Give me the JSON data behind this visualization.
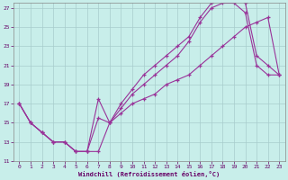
{
  "xlabel": "Windchill (Refroidissement éolien,°C)",
  "bg_color": "#c8eeea",
  "grid_color": "#a8cccc",
  "line_color": "#993399",
  "xlim": [
    -0.5,
    23.5
  ],
  "ylim": [
    11,
    27.5
  ],
  "yticks": [
    11,
    13,
    15,
    17,
    19,
    21,
    23,
    25,
    27
  ],
  "xticks": [
    0,
    1,
    2,
    3,
    4,
    5,
    6,
    7,
    8,
    9,
    10,
    11,
    12,
    13,
    14,
    15,
    16,
    17,
    18,
    19,
    20,
    21,
    22,
    23
  ],
  "line1_x": [
    0,
    1,
    2,
    3,
    4,
    5,
    6,
    7,
    8,
    9,
    10,
    11,
    12,
    13,
    14,
    15,
    16,
    17,
    18,
    19,
    20,
    21,
    22,
    23
  ],
  "line1_y": [
    17,
    15,
    14,
    13,
    13,
    12,
    12,
    15.5,
    15,
    17,
    18.5,
    20,
    21,
    22,
    23,
    24,
    26,
    27.5,
    28,
    28,
    27.5,
    22,
    21,
    20
  ],
  "line2_x": [
    0,
    1,
    2,
    3,
    4,
    5,
    6,
    7,
    8,
    9,
    10,
    11,
    12,
    13,
    14,
    15,
    16,
    17,
    18,
    19,
    20,
    21,
    22,
    23
  ],
  "line2_y": [
    17,
    15,
    14,
    13,
    13,
    12,
    12,
    12,
    15,
    16.5,
    18,
    19,
    20,
    21,
    22,
    23.5,
    25.5,
    27,
    27.5,
    27.5,
    26.5,
    21,
    20,
    20
  ],
  "line3_x": [
    0,
    1,
    2,
    3,
    4,
    5,
    6,
    7,
    8,
    9,
    10,
    11,
    12,
    13,
    14,
    15,
    16,
    17,
    18,
    19,
    20,
    21,
    22,
    23
  ],
  "line3_y": [
    17,
    15,
    14,
    13,
    13,
    12,
    12,
    17.5,
    15,
    16,
    17,
    17.5,
    18,
    19,
    19.5,
    20,
    21,
    22,
    23,
    24,
    25,
    25.5,
    26,
    20
  ]
}
